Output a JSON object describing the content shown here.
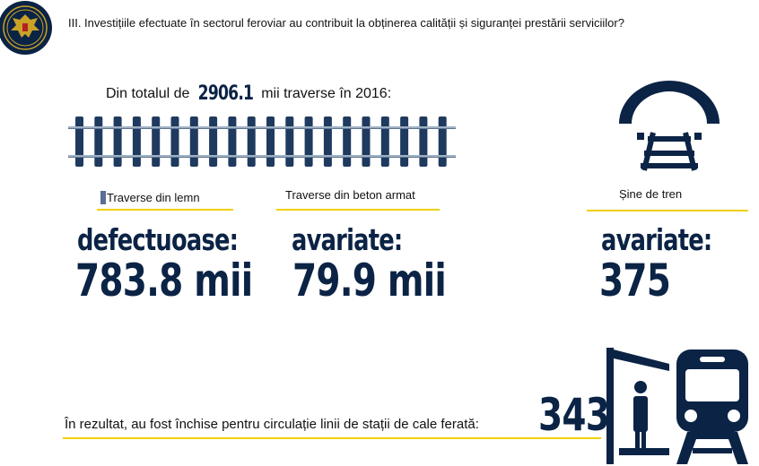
{
  "question": "III. Investițiile efectuate în sectorul feroviar au contribuit la obținerea calității și siguranței prestării serviciilor?",
  "intro": {
    "prefix": "Din totalul de ",
    "total": "2906.1",
    "suffix": " mii traverse în 2016:"
  },
  "items": [
    {
      "category": "Traverse din lemn",
      "label": "defectuoase:",
      "value": "783.8 mii"
    },
    {
      "category": "Traverse din beton armat",
      "label": "avariate:",
      "value": "79.9 mii"
    },
    {
      "category": "Șine de tren",
      "label": "avariate:",
      "value": "375"
    }
  ],
  "footer": {
    "text": "În rezultat, au fost închise pentru circulație linii de stații de cale ferată:",
    "value": "343"
  },
  "icons": [
    "emblem-icon",
    "railway-track-icon",
    "rail-tunnel-icon",
    "train-station-icon",
    "passenger-icon",
    "train-icon"
  ],
  "colors": {
    "navy": "#0b2345",
    "track": "#1f3a5f",
    "accent": "#f0d000"
  }
}
